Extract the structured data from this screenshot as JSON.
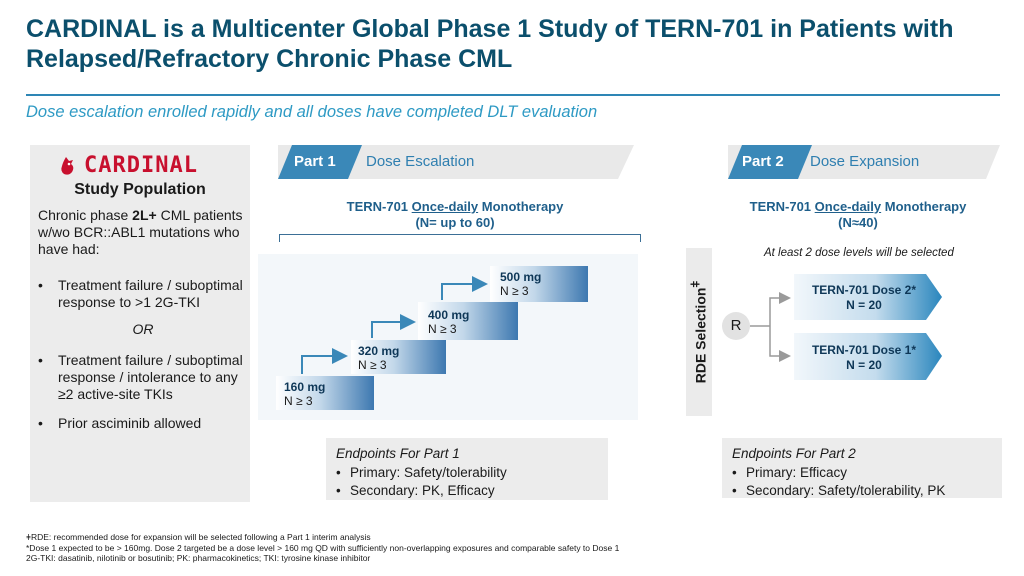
{
  "title": "CARDINAL is a Multicenter Global Phase 1 Study of TERN-701 in Patients with Relapsed/Refractory Chronic Phase CML",
  "subtitle": "Dose escalation enrolled rapidly and all doses have completed DLT evaluation",
  "study_population": {
    "logo_text": "CARDINAL",
    "logo_icon": "cardinal-bird-icon",
    "heading": "Study Population",
    "intro_pre": "Chronic phase ",
    "intro_bold": "2L+",
    "intro_post": " CML patients w/wo BCR::ABL1 mutations who have had:",
    "item1": "Treatment failure / suboptimal response to >1 2G-TKI",
    "or": "OR",
    "item2": "Treatment failure / suboptimal response / intolerance to any ≥2 active-site TKIs",
    "item3": "Prior asciminib allowed"
  },
  "part1": {
    "tag": "Part 1",
    "name": "Dose Escalation",
    "arm_pre": "TERN-701 ",
    "arm_underlined": "Once-daily",
    "arm_post": " Monotherapy",
    "arm_n": "(N= up to 60)",
    "steps": [
      {
        "dose": "160 mg",
        "n": "N ≥ 3"
      },
      {
        "dose": "320 mg",
        "n": "N ≥ 3"
      },
      {
        "dose": "400 mg",
        "n": "N ≥ 3"
      },
      {
        "dose": "500 mg",
        "n": "N ≥ 3"
      }
    ],
    "endpoints": {
      "title": "Endpoints For Part 1",
      "primary": "Primary: Safety/tolerability",
      "secondary": "Secondary: PK, Efficacy"
    }
  },
  "rde_label": "RDE Selection",
  "rde_mark": "ǂ",
  "part2": {
    "tag": "Part 2",
    "name": "Dose Expansion",
    "arm_pre": "TERN-701 ",
    "arm_underlined": "Once-daily",
    "arm_post": " Monotherapy",
    "arm_n": "(N≈40)",
    "note": "At least 2 dose levels will be selected",
    "randomize": "R",
    "dose2": {
      "label": "TERN-701 Dose 2*",
      "n": "N = 20"
    },
    "dose1": {
      "label": "TERN-701 Dose 1*",
      "n": "N = 20"
    },
    "endpoints": {
      "title": "Endpoints For Part 2",
      "primary": "Primary: Efficacy",
      "secondary": "Secondary: Safety/tolerability, PK"
    }
  },
  "footnotes": {
    "line1": "ǂRDE: recommended dose for expansion will be selected following a Part 1 interim analysis",
    "line2": "*Dose 1 expected to be > 160mg. Dose 2 targeted be a dose level > 160 mg QD with sufficiently non-overlapping exposures and comparable safety to Dose 1",
    "line3": "2G-TKI: dasatinib, nilotinib or bosutinib; PK: pharmacokinetics;  TKI: tyrosine kinase inhibitor"
  },
  "colors": {
    "title": "#0b4f6c",
    "accent": "#2e86b5",
    "logo": "#c8102e"
  }
}
